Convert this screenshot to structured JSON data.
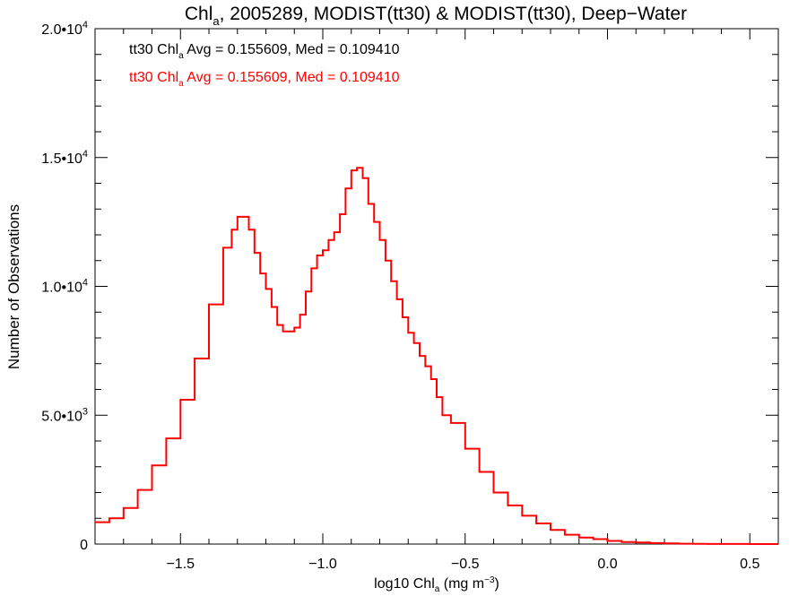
{
  "chart_data": {
    "type": "line",
    "step": true,
    "title": {
      "pre": "Chl",
      "sub": "a",
      "post": ", 2005289, MODIST(tt30) & MODIST(tt30), Deep−Water"
    },
    "xlabel": {
      "pre": "log10 Chl",
      "sub": "a",
      "mid": " (mg m",
      "sup": "−3",
      "post": ")"
    },
    "ylabel": "Number of Observations",
    "xlim": [
      -1.8,
      0.6
    ],
    "ylim": [
      0,
      20000
    ],
    "xticks": [
      {
        "v": -1.5,
        "label": "−1.5"
      },
      {
        "v": -1.0,
        "label": "−1.0"
      },
      {
        "v": -0.5,
        "label": "−0.5"
      },
      {
        "v": 0.0,
        "label": "0.0"
      },
      {
        "v": 0.5,
        "label": "0.5"
      }
    ],
    "yticks": [
      {
        "v": 0,
        "mant": "0",
        "exp": ""
      },
      {
        "v": 5000,
        "mant": "5.0•10",
        "exp": "3"
      },
      {
        "v": 10000,
        "mant": "1.0•10",
        "exp": "4"
      },
      {
        "v": 15000,
        "mant": "1.5•10",
        "exp": "4"
      },
      {
        "v": 20000,
        "mant": "2.0•10",
        "exp": "4"
      }
    ],
    "legend_position": "top-left",
    "legend": [
      {
        "pre": "tt30 Chl",
        "sub": "a",
        "post": " Avg = 0.155609, Med = 0.109410",
        "color": "#000000"
      },
      {
        "pre": "tt30 Chl",
        "sub": "a",
        "post": " Avg = 0.155609, Med = 0.109410",
        "color": "#ff0000"
      }
    ],
    "series": [
      {
        "color": "#ff0000",
        "x": [
          -1.8,
          -1.75,
          -1.7,
          -1.65,
          -1.6,
          -1.55,
          -1.5,
          -1.45,
          -1.4,
          -1.35,
          -1.32,
          -1.3,
          -1.28,
          -1.26,
          -1.24,
          -1.22,
          -1.2,
          -1.18,
          -1.16,
          -1.14,
          -1.12,
          -1.1,
          -1.08,
          -1.06,
          -1.04,
          -1.02,
          -1.0,
          -0.98,
          -0.96,
          -0.94,
          -0.92,
          -0.9,
          -0.88,
          -0.86,
          -0.84,
          -0.82,
          -0.8,
          -0.78,
          -0.76,
          -0.74,
          -0.72,
          -0.7,
          -0.68,
          -0.66,
          -0.64,
          -0.62,
          -0.6,
          -0.58,
          -0.55,
          -0.5,
          -0.45,
          -0.4,
          -0.35,
          -0.3,
          -0.25,
          -0.2,
          -0.15,
          -0.1,
          -0.05,
          0.0,
          0.05,
          0.1,
          0.15,
          0.2,
          0.25,
          0.3,
          0.35,
          0.4,
          0.45,
          0.5,
          0.55,
          0.6
        ],
        "values": [
          850,
          1000,
          1400,
          2100,
          3050,
          4100,
          5600,
          7200,
          9300,
          11500,
          12200,
          12700,
          12700,
          12200,
          11300,
          10500,
          9900,
          9200,
          8500,
          8250,
          8250,
          8400,
          8900,
          9800,
          10700,
          11200,
          11400,
          11800,
          12100,
          12800,
          13800,
          14500,
          14600,
          14200,
          13200,
          12500,
          11800,
          11000,
          10200,
          9500,
          8800,
          8200,
          7800,
          7300,
          6900,
          6400,
          5700,
          5000,
          4700,
          3700,
          2800,
          2000,
          1500,
          1100,
          800,
          550,
          360,
          250,
          190,
          120,
          80,
          60,
          40,
          25,
          15,
          8,
          5,
          3,
          2,
          1,
          0,
          0
        ]
      }
    ]
  }
}
